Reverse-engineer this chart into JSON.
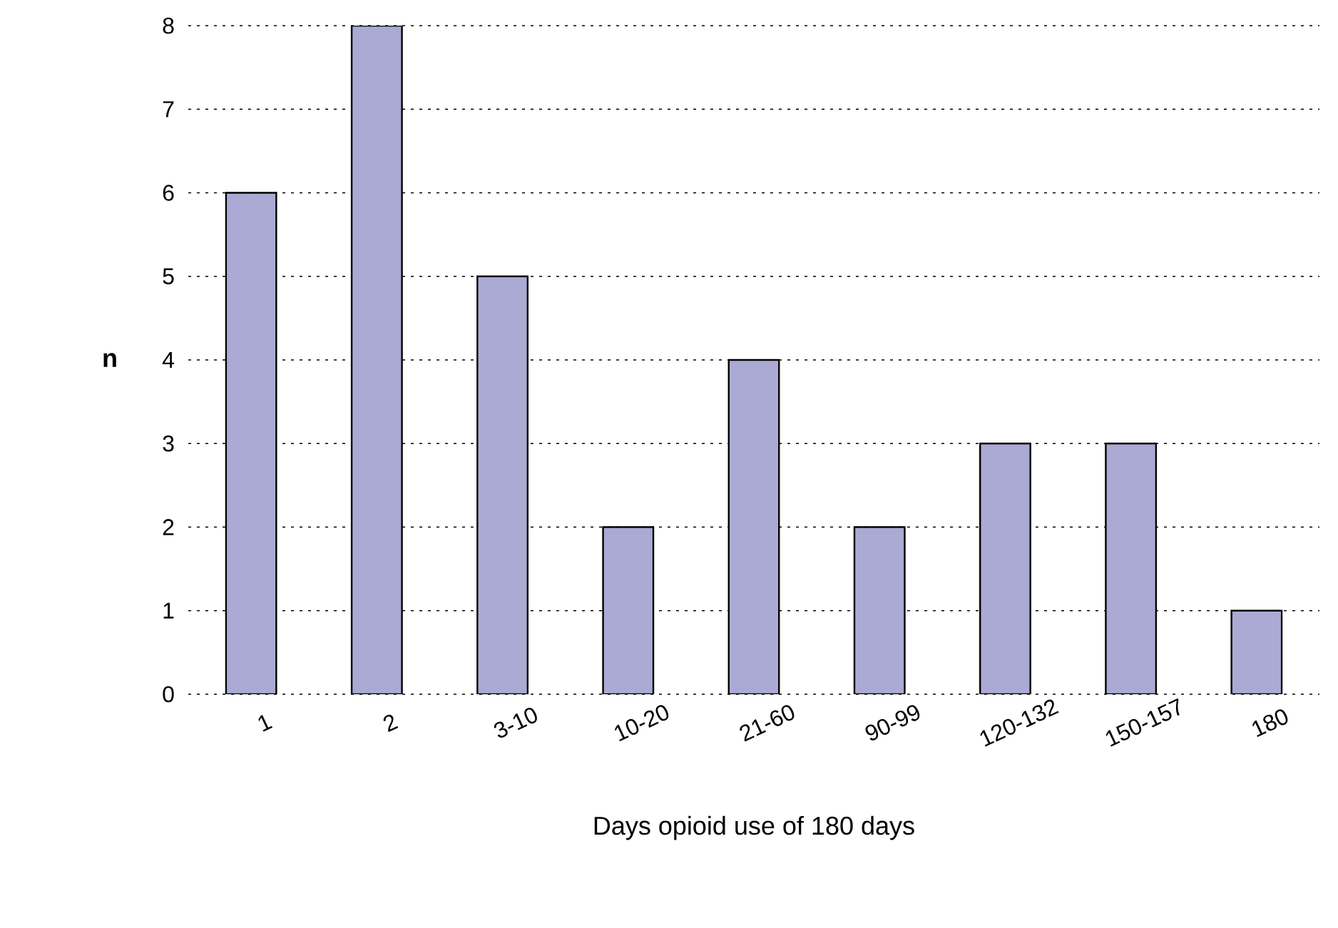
{
  "chart_data": {
    "type": "bar",
    "xlabel": "Days opioid use of 180 days",
    "ylabel": "n",
    "categories": [
      "1",
      "2",
      "3-10",
      "10-20",
      "21-60",
      "90-99",
      "120-132",
      "150-157",
      "180"
    ],
    "values": [
      6,
      8,
      5,
      2,
      4,
      2,
      3,
      3,
      1
    ],
    "color": "#aaaad4",
    "ylim": [
      0,
      8
    ],
    "yticks": [
      0,
      1,
      2,
      3,
      4,
      5,
      6,
      7,
      8
    ],
    "grid": "y"
  }
}
